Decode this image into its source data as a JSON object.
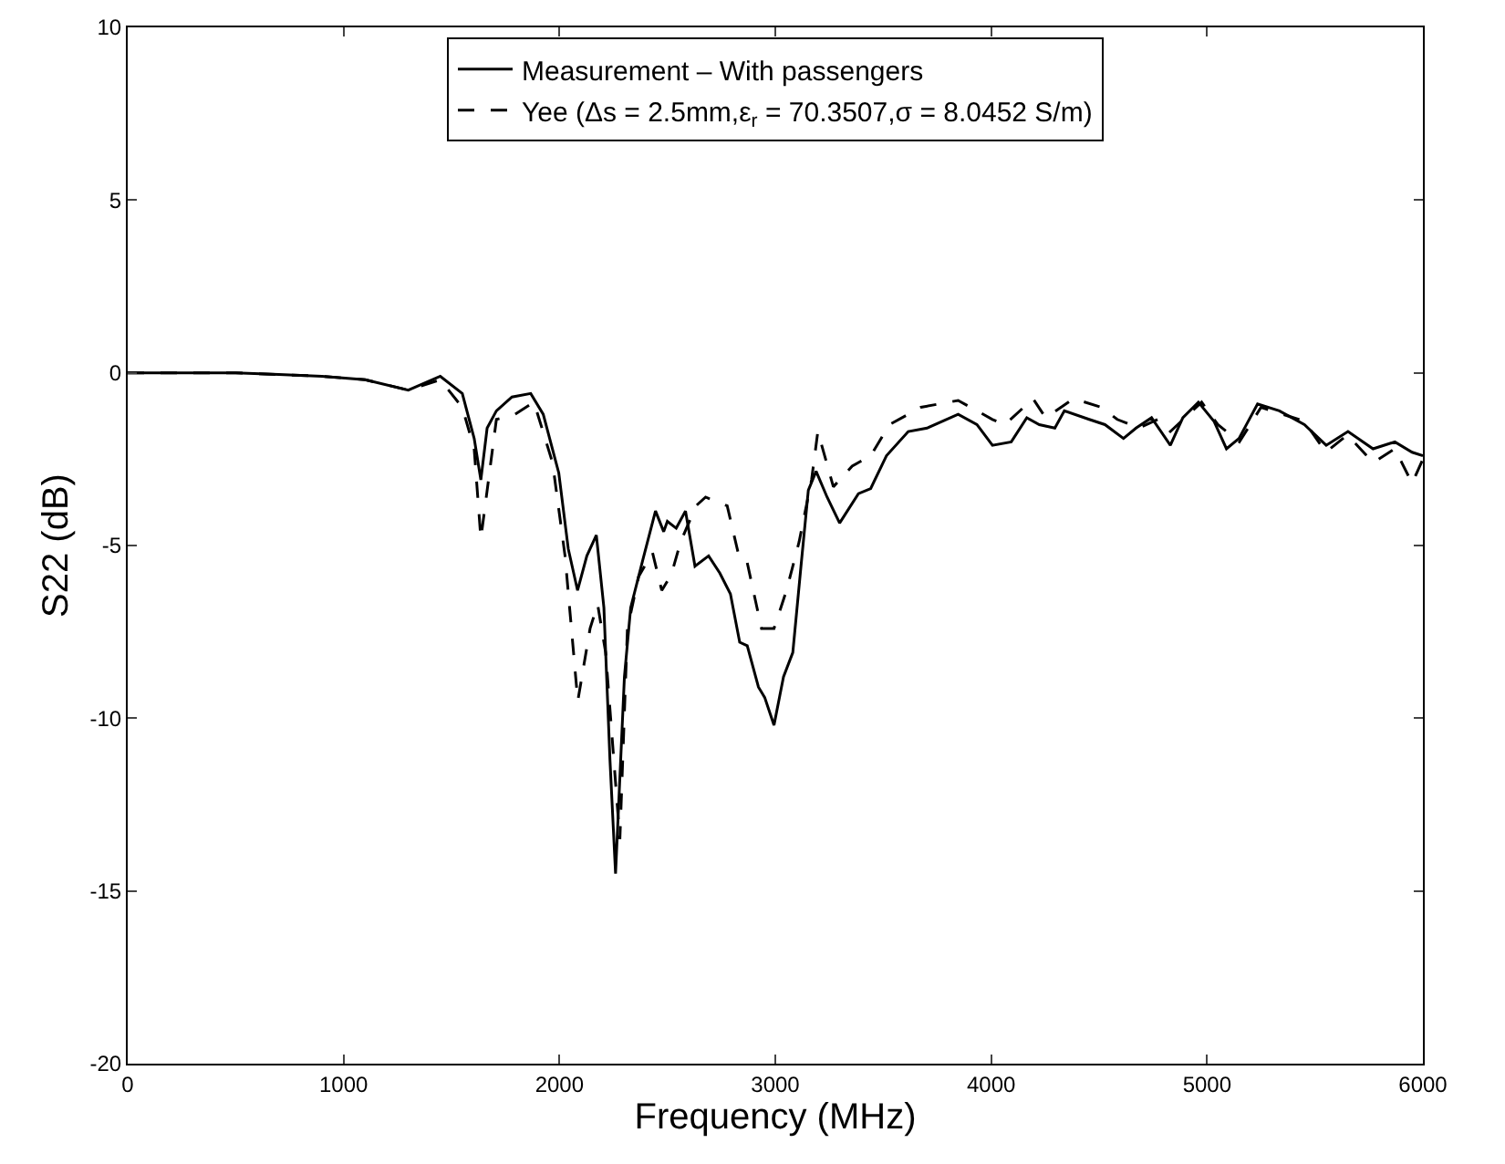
{
  "chart_data": {
    "type": "line",
    "xlabel": "Frequency (MHz)",
    "ylabel": "S22 (dB)",
    "xlim": [
      0,
      6000
    ],
    "ylim": [
      -20,
      10
    ],
    "xticks": [
      0,
      1000,
      2000,
      3000,
      4000,
      5000,
      6000
    ],
    "yticks": [
      -20,
      -15,
      -10,
      -5,
      0,
      5,
      10
    ],
    "legend": "top",
    "marker": "none",
    "series": [
      {
        "name": "Measurement – With passengers",
        "color": "#000000",
        "line_style": "solid",
        "x": [
          0,
          300,
          500,
          700,
          900,
          1100,
          1300,
          1448,
          1550,
          1605,
          1636,
          1665,
          1708,
          1780,
          1867,
          1925,
          1997,
          2041,
          2084,
          2127,
          2171,
          2206,
          2234,
          2260,
          2301,
          2330,
          2387,
          2445,
          2483,
          2500,
          2541,
          2584,
          2628,
          2691,
          2743,
          2792,
          2835,
          2870,
          2922,
          2951,
          2994,
          3038,
          3081,
          3119,
          3153,
          3189,
          3240,
          3298,
          3385,
          3442,
          3515,
          3616,
          3703,
          3847,
          3934,
          4006,
          4093,
          4165,
          4223,
          4295,
          4339,
          4454,
          4527,
          4613,
          4671,
          4743,
          4830,
          4888,
          4960,
          5032,
          5090,
          5148,
          5234,
          5335,
          5451,
          5552,
          5653,
          5769,
          5870,
          5950,
          6000
        ],
        "values": [
          0,
          0,
          0,
          -0.05,
          -0.1,
          -0.2,
          -0.5,
          -0.1,
          -0.6,
          -1.9,
          -3.1,
          -1.6,
          -1.1,
          -0.7,
          -0.6,
          -1.2,
          -2.9,
          -5.1,
          -6.3,
          -5.3,
          -4.7,
          -6.8,
          -11.2,
          -14.5,
          -8.8,
          -6.8,
          -5.4,
          -4.0,
          -4.6,
          -4.3,
          -4.5,
          -4.0,
          -5.6,
          -5.3,
          -5.8,
          -6.4,
          -7.8,
          -7.9,
          -9.1,
          -9.4,
          -10.2,
          -8.8,
          -8.1,
          -5.6,
          -3.4,
          -2.85,
          -3.6,
          -4.35,
          -3.5,
          -3.35,
          -2.4,
          -1.7,
          -1.6,
          -1.2,
          -1.5,
          -2.1,
          -2.0,
          -1.3,
          -1.5,
          -1.6,
          -1.1,
          -1.35,
          -1.5,
          -1.9,
          -1.6,
          -1.3,
          -2.1,
          -1.3,
          -0.85,
          -1.4,
          -2.2,
          -1.9,
          -0.9,
          -1.1,
          -1.5,
          -2.1,
          -1.7,
          -2.2,
          -2.0,
          -2.3,
          -2.4
        ]
      },
      {
        "name": "Yee (Δs = 2.5mm,ε$_{r}$ = 70.3507,σ = 8.0452 S/m)",
        "color": "#000000",
        "line_style": "dashed",
        "x": [
          0,
          300,
          500,
          700,
          900,
          1100,
          1300,
          1448,
          1550,
          1605,
          1636,
          1708,
          1795,
          1882,
          1968,
          2026,
          2085,
          2142,
          2177,
          2214,
          2280,
          2315,
          2367,
          2431,
          2474,
          2518,
          2561,
          2633,
          2677,
          2777,
          2835,
          2870,
          2936,
          2994,
          3052,
          3110,
          3168,
          3197,
          3269,
          3356,
          3442,
          3529,
          3674,
          3847,
          4006,
          4064,
          4194,
          4252,
          4382,
          4512,
          4584,
          4685,
          4772,
          4830,
          4975,
          5050,
          5150,
          5250,
          5350,
          5450,
          5550,
          5650,
          5770,
          5870,
          5950,
          6000
        ],
        "values": [
          0,
          0,
          0,
          -0.05,
          -0.1,
          -0.2,
          -0.5,
          -0.2,
          -1.0,
          -2.2,
          -4.8,
          -1.35,
          -1.2,
          -0.85,
          -2.6,
          -5.3,
          -9.5,
          -7.4,
          -6.7,
          -8.1,
          -13.5,
          -7.4,
          -5.9,
          -5.2,
          -6.3,
          -5.85,
          -4.9,
          -3.85,
          -3.6,
          -3.85,
          -5.4,
          -5.5,
          -7.4,
          -7.4,
          -6.3,
          -4.9,
          -3.1,
          -1.7,
          -3.3,
          -2.7,
          -2.4,
          -1.5,
          -1.0,
          -0.8,
          -1.35,
          -1.5,
          -0.75,
          -1.3,
          -0.75,
          -1.0,
          -1.35,
          -1.6,
          -1.35,
          -1.7,
          -0.85,
          -1.5,
          -2.0,
          -1.0,
          -1.2,
          -1.4,
          -2.3,
          -1.8,
          -2.6,
          -2.2,
          -3.2,
          -2.5
        ]
      }
    ]
  }
}
